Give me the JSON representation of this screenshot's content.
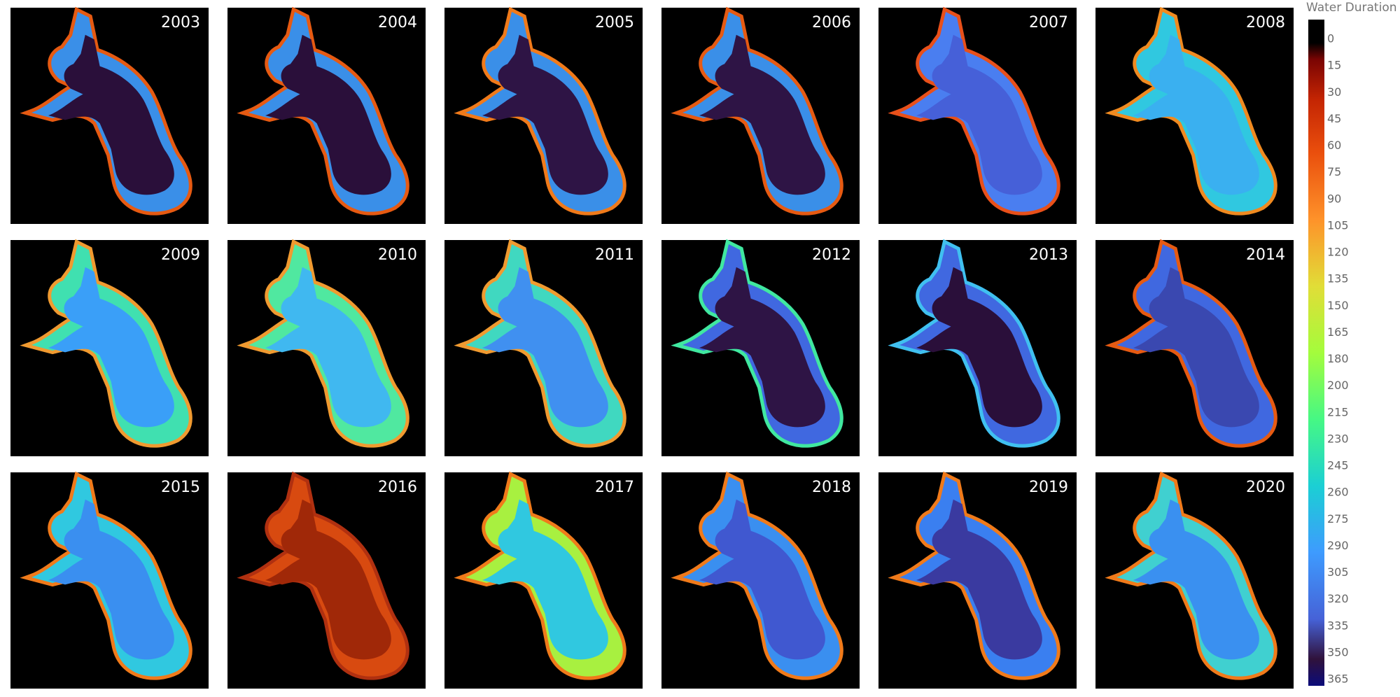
{
  "panels": [
    {
      "label": "2003"
    },
    {
      "label": "2004"
    },
    {
      "label": "2005"
    },
    {
      "label": "2006"
    },
    {
      "label": "2007"
    },
    {
      "label": "2008"
    },
    {
      "label": "2009"
    },
    {
      "label": "2010"
    },
    {
      "label": "2011"
    },
    {
      "label": "2012"
    },
    {
      "label": "2013"
    },
    {
      "label": "2014"
    },
    {
      "label": "2015"
    },
    {
      "label": "2016"
    },
    {
      "label": "2017"
    },
    {
      "label": "2018"
    },
    {
      "label": "2019"
    },
    {
      "label": "2020"
    }
  ],
  "legend": {
    "title": "Water Duration",
    "ticks": [
      0,
      15,
      30,
      45,
      60,
      75,
      90,
      105,
      120,
      135,
      150,
      165,
      180,
      200,
      215,
      230,
      245,
      260,
      275,
      290,
      305,
      320,
      335,
      350,
      365
    ]
  }
}
